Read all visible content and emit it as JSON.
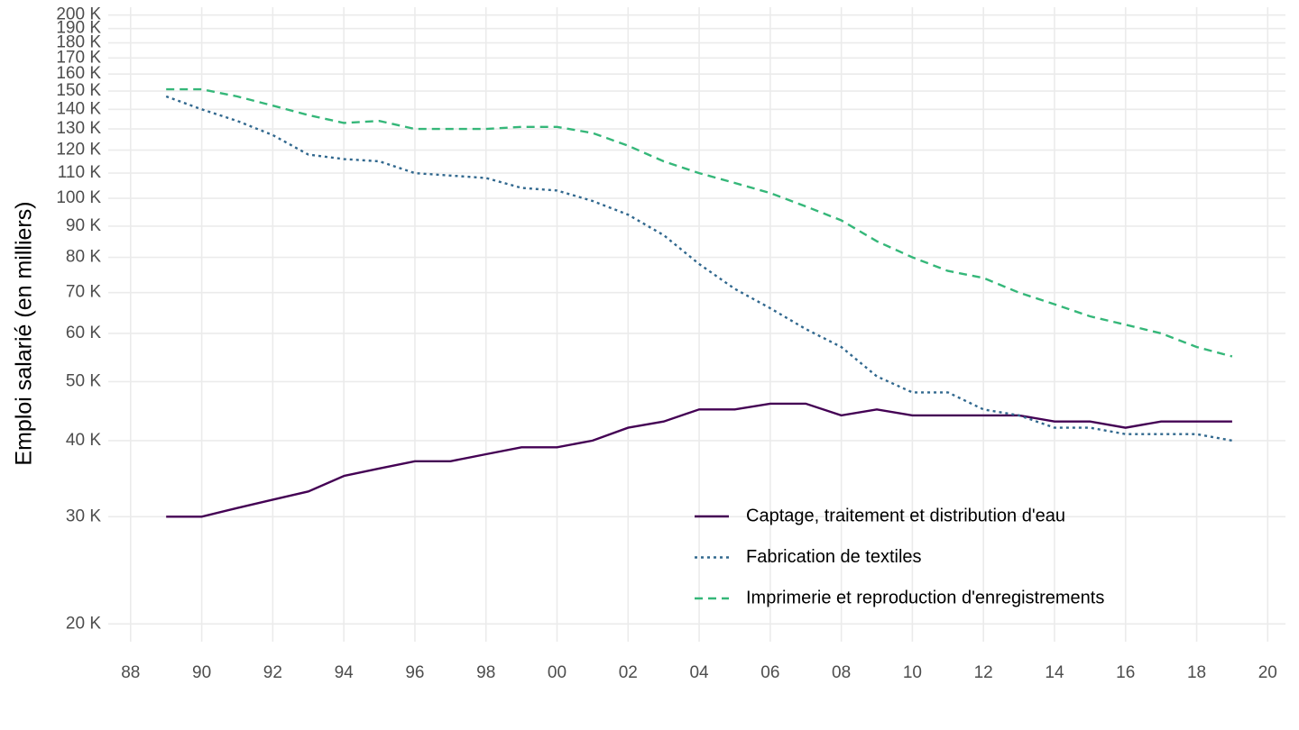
{
  "chart_data": {
    "type": "line",
    "y_label": "Emploi salarié (en milliers)",
    "log_scale_y": true,
    "grid": true,
    "legend": "bottom-right",
    "x": [
      1989,
      1990,
      1991,
      1992,
      1993,
      1994,
      1995,
      1996,
      1997,
      1998,
      1999,
      2000,
      2001,
      2002,
      2003,
      2004,
      2005,
      2006,
      2007,
      2008,
      2009,
      2010,
      2011,
      2012,
      2013,
      2014,
      2015,
      2016,
      2017,
      2018,
      2019
    ],
    "series": [
      {
        "name": "Captage, traitement et distribution d'eau",
        "color": "#440154",
        "linetype": "solid",
        "values": [
          30,
          30,
          31,
          32,
          33,
          35,
          36,
          37,
          37,
          38,
          39,
          39,
          40,
          42,
          43,
          45,
          45,
          46,
          46,
          44,
          45,
          44,
          44,
          44,
          44,
          43,
          43,
          42,
          43,
          43,
          43
        ]
      },
      {
        "name": "Fabrication de textiles",
        "color": "#31688e",
        "linetype": "dotted",
        "values": [
          147,
          140,
          134,
          127,
          118,
          116,
          115,
          110,
          109,
          108,
          104,
          103,
          99,
          94,
          87,
          78,
          71,
          66,
          61,
          57,
          51,
          48,
          48,
          45,
          44,
          42,
          42,
          41,
          41,
          41,
          40
        ]
      },
      {
        "name": "Imprimerie et reproduction d'enregistrements",
        "color": "#35b779",
        "linetype": "dashed",
        "values": [
          151,
          151,
          147,
          142,
          137,
          133,
          134,
          130,
          130,
          130,
          131,
          131,
          128,
          122,
          115,
          110,
          106,
          102,
          97,
          92,
          85,
          80,
          76,
          74,
          70,
          67,
          64,
          62,
          60,
          57,
          55
        ]
      }
    ],
    "xlim": [
      1987.37,
      2020.5
    ],
    "xticks": [
      {
        "value": 1988,
        "label": "88"
      },
      {
        "value": 1990,
        "label": "90"
      },
      {
        "value": 1992,
        "label": "92"
      },
      {
        "value": 1994,
        "label": "94"
      },
      {
        "value": 1996,
        "label": "96"
      },
      {
        "value": 1998,
        "label": "98"
      },
      {
        "value": 2000,
        "label": "00"
      },
      {
        "value": 2002,
        "label": "02"
      },
      {
        "value": 2004,
        "label": "04"
      },
      {
        "value": 2006,
        "label": "06"
      },
      {
        "value": 2008,
        "label": "08"
      },
      {
        "value": 2010,
        "label": "10"
      },
      {
        "value": 2012,
        "label": "12"
      },
      {
        "value": 2014,
        "label": "14"
      },
      {
        "value": 2016,
        "label": "16"
      },
      {
        "value": 2018,
        "label": "18"
      },
      {
        "value": 2020,
        "label": "20"
      }
    ],
    "ylim": [
      18.7,
      206
    ],
    "yticks": [
      {
        "value": 20,
        "label": "20 K"
      },
      {
        "value": 30,
        "label": "30 K"
      },
      {
        "value": 40,
        "label": "40 K"
      },
      {
        "value": 50,
        "label": "50 K"
      },
      {
        "value": 60,
        "label": "60 K"
      },
      {
        "value": 70,
        "label": "70 K"
      },
      {
        "value": 80,
        "label": "80 K"
      },
      {
        "value": 90,
        "label": "90 K"
      },
      {
        "value": 100,
        "label": "100 K"
      },
      {
        "value": 110,
        "label": "110 K"
      },
      {
        "value": 120,
        "label": "120 K"
      },
      {
        "value": 130,
        "label": "130 K"
      },
      {
        "value": 140,
        "label": "140 K"
      },
      {
        "value": 150,
        "label": "150 K"
      },
      {
        "value": 160,
        "label": "160 K"
      },
      {
        "value": 170,
        "label": "170 K"
      },
      {
        "value": 180,
        "label": "180 K"
      },
      {
        "value": 190,
        "label": "190 K"
      },
      {
        "value": 200,
        "label": "200 K"
      }
    ]
  }
}
